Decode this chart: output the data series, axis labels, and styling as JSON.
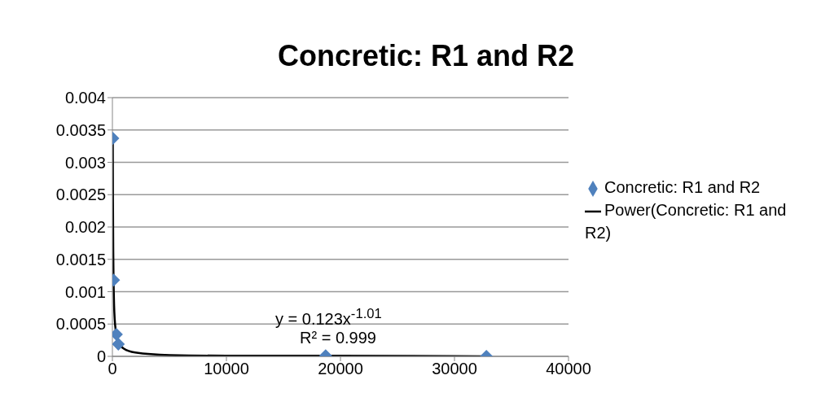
{
  "chart_data": {
    "type": "scatter",
    "title": "Concretic: R1 and R2",
    "x": [
      36,
      104,
      350,
      520,
      18700,
      32800
    ],
    "series": [
      {
        "name": "Concretic: R1 and R2",
        "color": "#4f81bd",
        "marker": "diamond",
        "values": [
          0.00337,
          0.00118,
          0.00034,
          0.00019,
          1e-05,
          0
        ]
      },
      {
        "name": "Power(Concretic: R1 and R2)",
        "color": "#000000",
        "type": "line",
        "marker": "none",
        "line_style": "solid",
        "x": [
          36,
          50,
          75,
          100,
          150,
          200,
          300,
          500,
          1000,
          2000,
          5000,
          10000,
          20000,
          32800
        ],
        "values": [
          0.0033,
          0.0024,
          0.0016,
          0.0012,
          0.00078,
          0.00058,
          0.00039,
          0.00023,
          0.00012,
          6e-05,
          2e-05,
          1e-05,
          1e-05,
          0
        ]
      }
    ],
    "xlim": [
      0,
      40000
    ],
    "xticks": [
      0,
      10000,
      20000,
      30000,
      40000
    ],
    "ylim": [
      0,
      0.004
    ],
    "yticks": [
      0,
      0.0005,
      0.001,
      0.0015,
      0.002,
      0.0025,
      0.003,
      0.0035,
      0.004
    ],
    "grid": "y",
    "legend": "right",
    "annotations": [
      "y = 0.123x$^{-1.01}$",
      "R² = 0.999"
    ]
  }
}
